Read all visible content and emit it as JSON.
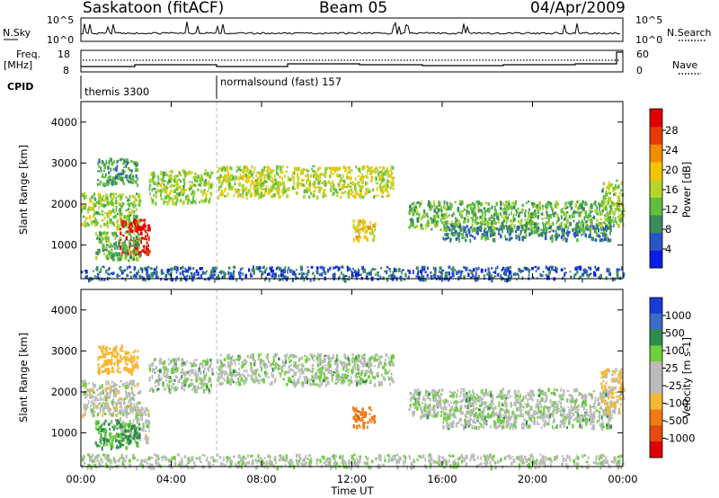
{
  "header": {
    "station": "Saskatoon (fitACF)",
    "beam": "Beam 05",
    "date": "04/Apr/2009"
  },
  "noise_panel": {
    "left_label": "N.Sky",
    "right_label": "N.Search",
    "left_ticks": [
      "10^5",
      "10^0"
    ],
    "right_ticks": [
      "10^5",
      "10^0"
    ]
  },
  "freq_panel": {
    "left_label_1": "Freq.",
    "left_label_2": "[MHz]",
    "right_label": "Nave",
    "left_ticks": [
      "18",
      "8"
    ],
    "right_ticks": [
      "60",
      "0"
    ]
  },
  "cpid": {
    "label": "CPID",
    "modes": [
      {
        "name": "themis 3300",
        "start_hour": 0,
        "end_hour": 6
      },
      {
        "name": "normalsound (fast) 157",
        "start_hour": 6,
        "end_hour": 24
      }
    ]
  },
  "time_axis": {
    "label": "Time UT",
    "ticks": [
      "00:00",
      "04:00",
      "08:00",
      "12:00",
      "16:00",
      "20:00",
      "00:00"
    ]
  },
  "power_panel": {
    "ylabel": "Slant Range [km]",
    "yticks": [
      "4000",
      "3000",
      "2000",
      "1000"
    ],
    "colorbar_label": "Power [dB]",
    "colorbar_ticks": [
      "28",
      "24",
      "20",
      "16",
      "12",
      "8",
      "4"
    ],
    "colors": [
      "#0a1ee6",
      "#2a55c8",
      "#3a8c5a",
      "#5fbf3f",
      "#b8d42a",
      "#f5c400",
      "#f28c00",
      "#e83a00",
      "#e00000"
    ]
  },
  "velocity_panel": {
    "ylabel": "Slant Range [km]",
    "yticks": [
      "4000",
      "3000",
      "2000",
      "1000"
    ],
    "colorbar_label": "Velocity [m s-1]",
    "colorbar_ticks": [
      "1000",
      "500",
      "100",
      "25",
      "-25",
      "-100",
      "-500",
      "-1000"
    ],
    "colors": [
      "#1a3ad8",
      "#3a6cc8",
      "#2e8c4a",
      "#6ccf3c",
      "#bbbbbb",
      "#bbbbbb",
      "#f7b733",
      "#f07a12",
      "#e54a10",
      "#e00000"
    ]
  },
  "chart_data": {
    "type": "heatmap",
    "title": "Saskatoon (fitACF)  Beam 05  04/Apr/2009",
    "xlabel": "Time UT",
    "ylabel": "Slant Range [km]",
    "xlim_hours": [
      0,
      24
    ],
    "ylim_km": [
      180,
      4500
    ],
    "grid": false,
    "scatter_regions_km": [
      {
        "name": "A",
        "t0": 0.0,
        "t1": 2.6,
        "r0": 1450,
        "r1": 2300,
        "power_db": 14,
        "velocity": -15
      },
      {
        "name": "B",
        "t0": 0.7,
        "t1": 2.5,
        "r0": 2500,
        "r1": 3150,
        "power_db": 10,
        "velocity": -120
      },
      {
        "name": "C",
        "t0": 1.7,
        "t1": 3.0,
        "r0": 800,
        "r1": 1650,
        "power_db": 30,
        "velocity": -10
      },
      {
        "name": "D",
        "t0": 0.6,
        "t1": 2.6,
        "r0": 650,
        "r1": 1350,
        "power_db": 12,
        "velocity": 80
      },
      {
        "name": "E",
        "t0": 3.0,
        "t1": 5.8,
        "r0": 2050,
        "r1": 2850,
        "power_db": 14,
        "velocity": 10
      },
      {
        "name": "F",
        "t0": 6.0,
        "t1": 13.8,
        "r0": 2200,
        "r1": 2950,
        "power_db": 16,
        "velocity": 5
      },
      {
        "name": "G",
        "t0": 12.0,
        "t1": 13.0,
        "r0": 1150,
        "r1": 1650,
        "power_db": 18,
        "velocity": -350
      },
      {
        "name": "H",
        "t0": 14.5,
        "t1": 23.5,
        "r0": 1400,
        "r1": 2100,
        "power_db": 12,
        "velocity": 5
      },
      {
        "name": "I",
        "t0": 16.0,
        "t1": 23.5,
        "r0": 1150,
        "r1": 1500,
        "power_db": 8,
        "velocity": 10
      },
      {
        "name": "J",
        "t0": 23.0,
        "t1": 24.0,
        "r0": 1500,
        "r1": 2600,
        "power_db": 14,
        "velocity": -80
      },
      {
        "name": "K",
        "t0": 0.0,
        "t1": 24.0,
        "r0": 180,
        "r1": 500,
        "power_db": 6,
        "velocity": 0
      }
    ]
  }
}
